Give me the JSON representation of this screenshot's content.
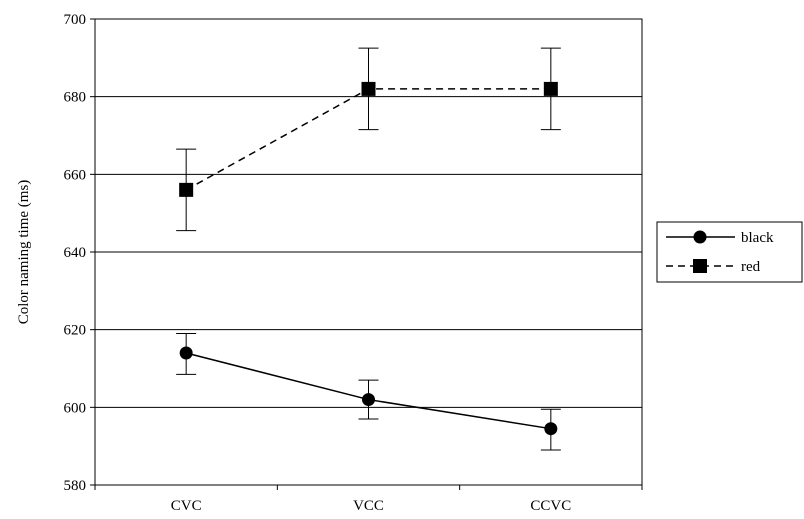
{
  "chart_data": {
    "type": "line",
    "categories": [
      "CVC",
      "VCC",
      "CCVC"
    ],
    "ylabel": "Color naming time (ms)",
    "xlabel": "",
    "ylim": [
      580,
      700
    ],
    "yticks": [
      580,
      600,
      620,
      640,
      660,
      680,
      700
    ],
    "grid": "horizontal",
    "legend_position": "right",
    "series": [
      {
        "name": "black",
        "marker": "circle",
        "line_style": "solid",
        "color": "#000000",
        "values": [
          614,
          602,
          594.5
        ],
        "error_low": [
          608.5,
          597,
          589
        ],
        "error_high": [
          619,
          607,
          599.5
        ]
      },
      {
        "name": "red",
        "marker": "square",
        "line_style": "dashed",
        "color": "#000000",
        "values": [
          656,
          682,
          682
        ],
        "error_low": [
          645.5,
          671.5,
          671.5
        ],
        "error_high": [
          666.5,
          692.5,
          692.5
        ]
      }
    ]
  }
}
